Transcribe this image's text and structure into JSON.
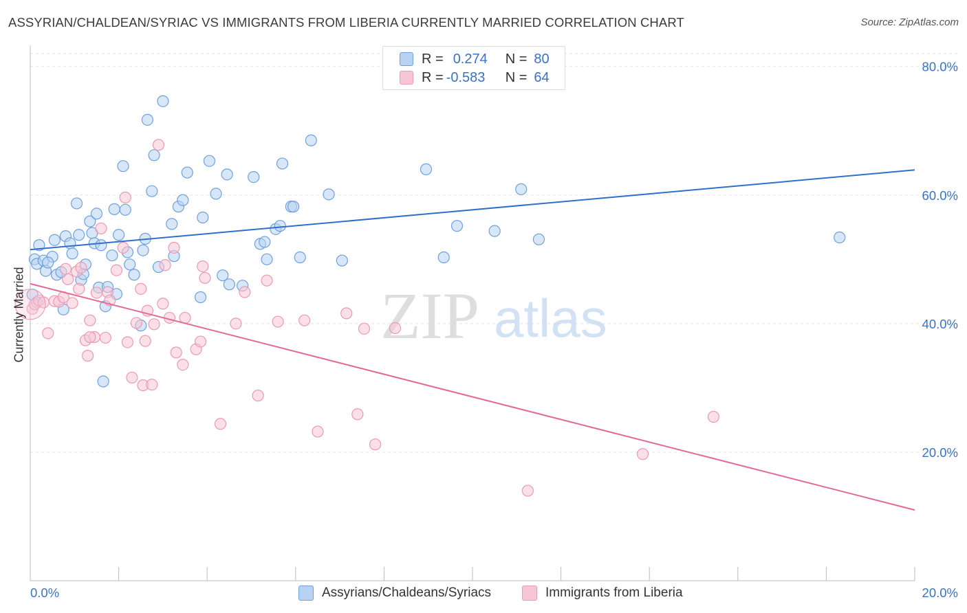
{
  "title": "ASSYRIAN/CHALDEAN/SYRIAC VS IMMIGRANTS FROM LIBERIA CURRENTLY MARRIED CORRELATION CHART",
  "source": "Source: ZipAtlas.com",
  "watermark": {
    "zip": "ZIP",
    "atlas": "atlas"
  },
  "legend": {
    "rows": [
      {
        "r_label": "R =",
        "r_value": "0.274",
        "n_label": "N =",
        "n_value": "80"
      },
      {
        "r_label": "R =",
        "r_value": "-0.583",
        "n_label": "N =",
        "n_value": "64"
      }
    ]
  },
  "colors": {
    "blue_fill": "#b8d3f2",
    "blue_stroke": "#6fa0dc",
    "blue_line": "#2f6fcc",
    "pink_fill": "#f7c6d6",
    "pink_stroke": "#ea9ab4",
    "pink_line": "#e0699a",
    "tick_text": "#3a72c4",
    "grid": "#e2e2e2"
  },
  "chart_data": {
    "type": "scatter",
    "title": "ASSYRIAN/CHALDEAN/SYRIAC VS IMMIGRANTS FROM LIBERIA CURRENTLY MARRIED CORRELATION CHART",
    "xlabel": "",
    "ylabel": "Currently Married",
    "xlim": [
      0,
      20
    ],
    "ylim": [
      0,
      82
    ],
    "x_tick_labels": [
      "0.0%",
      "20.0%"
    ],
    "y_ticks": [
      20,
      40,
      60,
      80
    ],
    "y_tick_labels": [
      "20.0%",
      "40.0%",
      "60.0%",
      "80.0%"
    ],
    "grid": true,
    "legend_position": "top-center",
    "series": [
      {
        "name": "Assyrians/Chaldeans/Syriacs",
        "color": "#b8d3f2",
        "trend": {
          "x": [
            0,
            20
          ],
          "y": [
            51.5,
            63.9
          ]
        },
        "points": [
          [
            0.05,
            44.5
          ],
          [
            0.1,
            50
          ],
          [
            0.15,
            49.3
          ],
          [
            0.2,
            52.2
          ],
          [
            0.3,
            49.8
          ],
          [
            0.35,
            48.2
          ],
          [
            0.5,
            50.4
          ],
          [
            0.55,
            53
          ],
          [
            0.6,
            47.6
          ],
          [
            0.7,
            48
          ],
          [
            0.75,
            42.2
          ],
          [
            0.8,
            53.6
          ],
          [
            0.9,
            52.5
          ],
          [
            0.95,
            50.9
          ],
          [
            1.05,
            58.7
          ],
          [
            1.1,
            53.8
          ],
          [
            1.15,
            46.8
          ],
          [
            1.2,
            47.7
          ],
          [
            1.25,
            49.2
          ],
          [
            1.35,
            55.9
          ],
          [
            1.4,
            54.1
          ],
          [
            1.45,
            52.5
          ],
          [
            1.5,
            57.1
          ],
          [
            1.55,
            45.6
          ],
          [
            1.6,
            52.2
          ],
          [
            1.7,
            42.7
          ],
          [
            1.75,
            45.7
          ],
          [
            1.85,
            50.6
          ],
          [
            1.9,
            57.8
          ],
          [
            1.95,
            44.6
          ],
          [
            2.0,
            53.8
          ],
          [
            2.1,
            64.5
          ],
          [
            2.15,
            57.7
          ],
          [
            2.2,
            51.1
          ],
          [
            2.25,
            49.2
          ],
          [
            2.35,
            47.6
          ],
          [
            2.5,
            39.7
          ],
          [
            2.55,
            51.4
          ],
          [
            2.6,
            53.2
          ],
          [
            2.65,
            71.7
          ],
          [
            2.75,
            60.6
          ],
          [
            2.8,
            66.2
          ],
          [
            2.9,
            48.8
          ],
          [
            3.0,
            74.6
          ],
          [
            3.2,
            55.5
          ],
          [
            3.25,
            50.5
          ],
          [
            3.35,
            58.2
          ],
          [
            3.45,
            59.2
          ],
          [
            3.55,
            63.5
          ],
          [
            3.85,
            44.1
          ],
          [
            3.9,
            56.5
          ],
          [
            4.05,
            65.3
          ],
          [
            4.2,
            60.2
          ],
          [
            4.35,
            47.5
          ],
          [
            4.45,
            63.2
          ],
          [
            4.5,
            46.1
          ],
          [
            4.8,
            45.9
          ],
          [
            5.05,
            62.8
          ],
          [
            5.2,
            52.4
          ],
          [
            5.3,
            52.7
          ],
          [
            5.35,
            50
          ],
          [
            5.55,
            54.7
          ],
          [
            5.65,
            55.2
          ],
          [
            5.9,
            58.2
          ],
          [
            5.95,
            58.2
          ],
          [
            5.7,
            64.9
          ],
          [
            6.1,
            50.3
          ],
          [
            6.35,
            68.5
          ],
          [
            6.75,
            60.1
          ],
          [
            7.05,
            49.8
          ],
          [
            1.65,
            31
          ],
          [
            8.95,
            64
          ],
          [
            9.35,
            50.3
          ],
          [
            9.65,
            55.2
          ],
          [
            10.5,
            54.4
          ],
          [
            11.1,
            60.9
          ],
          [
            11.5,
            53.1
          ],
          [
            18.3,
            53.4
          ],
          [
            0.15,
            43.3
          ],
          [
            0.4,
            49.5
          ]
        ]
      },
      {
        "name": "Immigrants from Liberia",
        "color": "#f7c6d6",
        "trend": {
          "x": [
            0,
            20
          ],
          "y": [
            46.2,
            11
          ]
        },
        "points": [
          [
            0.05,
            42.3
          ],
          [
            0.1,
            43
          ],
          [
            0.2,
            43.6
          ],
          [
            0.3,
            43.3
          ],
          [
            0.4,
            38.5
          ],
          [
            0.55,
            43.5
          ],
          [
            0.65,
            43.4
          ],
          [
            0.75,
            44.1
          ],
          [
            0.8,
            48.5
          ],
          [
            0.85,
            46.9
          ],
          [
            0.95,
            43.2
          ],
          [
            1.05,
            48.1
          ],
          [
            1.1,
            45.4
          ],
          [
            1.15,
            48.7
          ],
          [
            1.25,
            37.4
          ],
          [
            1.3,
            35
          ],
          [
            1.35,
            40.5
          ],
          [
            1.45,
            37.9
          ],
          [
            1.5,
            44.8
          ],
          [
            1.6,
            54.8
          ],
          [
            1.7,
            37.8
          ],
          [
            1.75,
            44.9
          ],
          [
            1.8,
            43.6
          ],
          [
            1.95,
            48.3
          ],
          [
            2.1,
            51.8
          ],
          [
            2.15,
            59.6
          ],
          [
            2.2,
            37.1
          ],
          [
            2.3,
            31.6
          ],
          [
            2.4,
            40.1
          ],
          [
            2.5,
            45.4
          ],
          [
            2.55,
            30.4
          ],
          [
            2.6,
            37.3
          ],
          [
            2.65,
            42
          ],
          [
            2.75,
            30.5
          ],
          [
            2.8,
            39.9
          ],
          [
            2.9,
            67.8
          ],
          [
            3.0,
            43.1
          ],
          [
            3.05,
            49.1
          ],
          [
            3.15,
            40.9
          ],
          [
            3.25,
            51.8
          ],
          [
            3.3,
            35.5
          ],
          [
            3.45,
            33.6
          ],
          [
            3.5,
            40.9
          ],
          [
            3.75,
            36
          ],
          [
            3.85,
            37.2
          ],
          [
            3.9,
            48.9
          ],
          [
            3.95,
            47.1
          ],
          [
            4.3,
            24.4
          ],
          [
            4.65,
            40
          ],
          [
            4.85,
            44.9
          ],
          [
            5.15,
            28.8
          ],
          [
            5.35,
            46.7
          ],
          [
            5.6,
            40.3
          ],
          [
            6.2,
            40.5
          ],
          [
            6.5,
            23.2
          ],
          [
            7.15,
            41.6
          ],
          [
            7.4,
            25.9
          ],
          [
            7.55,
            39.2
          ],
          [
            7.8,
            21.2
          ],
          [
            8.25,
            39.3
          ],
          [
            11.25,
            14
          ],
          [
            13.85,
            19.7
          ],
          [
            15.45,
            25.5
          ],
          [
            1.35,
            37.9
          ]
        ]
      }
    ]
  },
  "bottom_legend": {
    "items": [
      "Assyrians/Chaldeans/Syriacs",
      "Immigrants from Liberia"
    ]
  }
}
